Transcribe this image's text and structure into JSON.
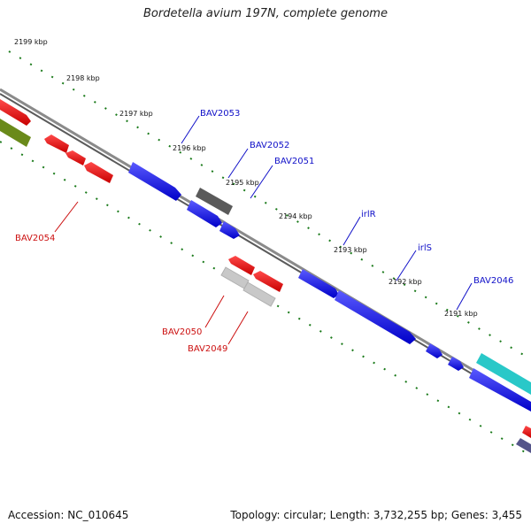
{
  "title": "Bordetella avium 197N, complete genome",
  "footer": {
    "accession": "Accession: NC_010645",
    "summary": "Topology: circular; Length: 3,732,255 bp; Genes: 3,455"
  },
  "kbp_ticks": [
    "2199 kbp",
    "2198 kbp",
    "2197 kbp",
    "2196 kbp",
    "2195 kbp",
    "2194 kbp",
    "2193 kbp",
    "2192 kbp",
    "2191 kbp"
  ],
  "gene_labels": {
    "bav2053": "BAV2053",
    "bav2052": "BAV2052",
    "bav2051": "BAV2051",
    "irlr": "irlR",
    "irls": "irlS",
    "bav2046": "BAV2046",
    "bav2054": "BAV2054",
    "bav2050": "BAV2050",
    "bav2049": "BAV2049"
  },
  "colors": {
    "forward_label": "#1010c8",
    "reverse_label": "#cc1010",
    "tick_green": "#1a7a1a",
    "backbone": "#808080"
  }
}
